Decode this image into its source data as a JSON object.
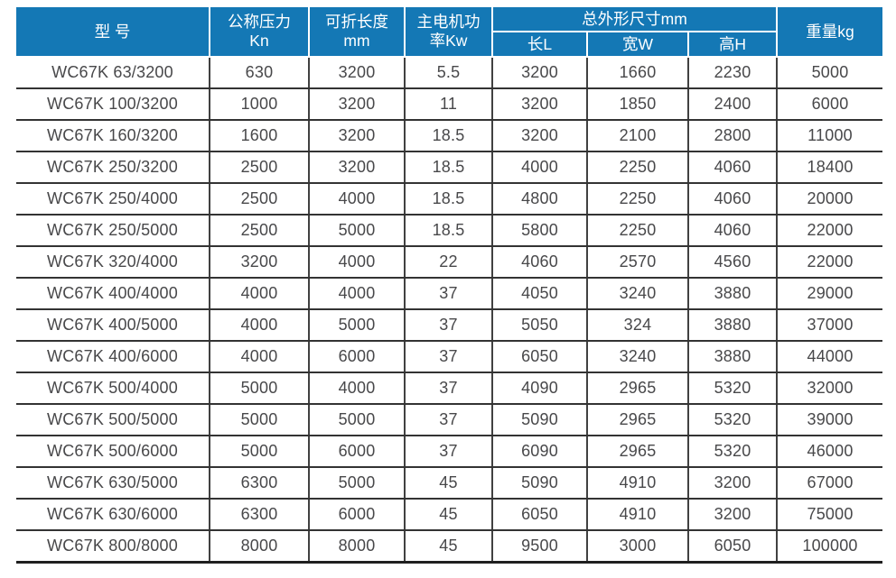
{
  "table": {
    "title_semantic": "WC67K press brake specification table",
    "colors": {
      "header_bg": "#1478b5",
      "header_text": "#ffffff",
      "body_text": "#48484a",
      "grid_line": "#3a3a3a"
    },
    "headers": {
      "model": "型 号",
      "pressure_line1": "公称压力",
      "pressure_line2": "Kn",
      "fold_length_line1": "可折长度",
      "fold_length_line2": "mm",
      "motor_power_line1": "主电机功",
      "motor_power_line2": "率Kw",
      "dimensions_group": "总外形尺寸mm",
      "dim_length": "长L",
      "dim_width": "宽W",
      "dim_height": "高H",
      "weight": "重量kg"
    },
    "rows": [
      [
        "WC67K 63/3200",
        "630",
        "3200",
        "5.5",
        "3200",
        "1660",
        "2230",
        "5000"
      ],
      [
        "WC67K 100/3200",
        "1000",
        "3200",
        "11",
        "3200",
        "1850",
        "2400",
        "6000"
      ],
      [
        "WC67K 160/3200",
        "1600",
        "3200",
        "18.5",
        "3200",
        "2100",
        "2800",
        "11000"
      ],
      [
        "WC67K 250/3200",
        "2500",
        "3200",
        "18.5",
        "4000",
        "2250",
        "4060",
        "18400"
      ],
      [
        "WC67K 250/4000",
        "2500",
        "4000",
        "18.5",
        "4800",
        "2250",
        "4060",
        "20000"
      ],
      [
        "WC67K 250/5000",
        "2500",
        "5000",
        "18.5",
        "5800",
        "2250",
        "4060",
        "22000"
      ],
      [
        "WC67K 320/4000",
        "3200",
        "4000",
        "22",
        "4060",
        "2570",
        "4560",
        "22000"
      ],
      [
        "WC67K 400/4000",
        "4000",
        "4000",
        "37",
        "4050",
        "3240",
        "3880",
        "29000"
      ],
      [
        "WC67K 400/5000",
        "4000",
        "5000",
        "37",
        "5050",
        "324",
        "3880",
        "37000"
      ],
      [
        "WC67K 400/6000",
        "4000",
        "6000",
        "37",
        "6050",
        "3240",
        "3880",
        "44000"
      ],
      [
        "WC67K 500/4000",
        "5000",
        "4000",
        "37",
        "4090",
        "2965",
        "5320",
        "32000"
      ],
      [
        "WC67K 500/5000",
        "5000",
        "5000",
        "37",
        "5090",
        "2965",
        "5320",
        "39000"
      ],
      [
        "WC67K 500/6000",
        "5000",
        "6000",
        "37",
        "6090",
        "2965",
        "5320",
        "46000"
      ],
      [
        "WC67K 630/5000",
        "6300",
        "5000",
        "45",
        "5090",
        "4910",
        "3200",
        "67000"
      ],
      [
        "WC67K 630/6000",
        "6300",
        "6000",
        "45",
        "6050",
        "4910",
        "3200",
        "75000"
      ],
      [
        "WC67K 800/8000",
        "8000",
        "8000",
        "45",
        "9500",
        "3000",
        "6050",
        "100000"
      ]
    ]
  }
}
